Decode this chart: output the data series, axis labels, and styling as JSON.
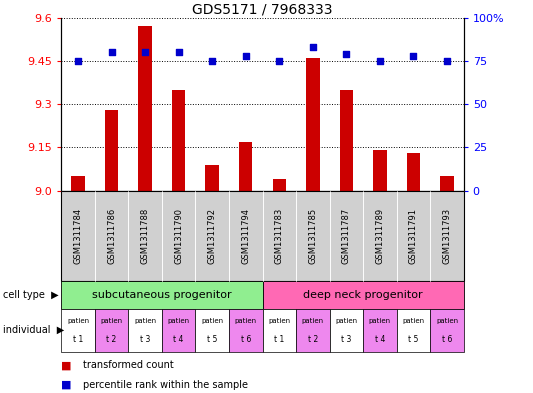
{
  "title": "GDS5171 / 7968333",
  "samples": [
    "GSM1311784",
    "GSM1311786",
    "GSM1311788",
    "GSM1311790",
    "GSM1311792",
    "GSM1311794",
    "GSM1311783",
    "GSM1311785",
    "GSM1311787",
    "GSM1311789",
    "GSM1311791",
    "GSM1311793"
  ],
  "transformed_count": [
    9.05,
    9.28,
    9.57,
    9.35,
    9.09,
    9.17,
    9.04,
    9.46,
    9.35,
    9.14,
    9.13,
    9.05
  ],
  "percentile_rank": [
    75,
    80,
    80,
    80,
    75,
    78,
    75,
    83,
    79,
    75,
    78,
    75
  ],
  "ylim_left": [
    9.0,
    9.6
  ],
  "ylim_right": [
    0,
    100
  ],
  "yticks_left": [
    9.0,
    9.15,
    9.3,
    9.45,
    9.6
  ],
  "yticks_right": [
    0,
    25,
    50,
    75,
    100
  ],
  "cell_type_groups": [
    {
      "label": "subcutaneous progenitor",
      "start": 0,
      "end": 6,
      "color": "#90EE90"
    },
    {
      "label": "deep neck progenitor",
      "start": 6,
      "end": 12,
      "color": "#FF69B4"
    }
  ],
  "individual_labels": [
    "t 1",
    "t 2",
    "t 3",
    "t 4",
    "t 5",
    "t 6",
    "t 1",
    "t 2",
    "t 3",
    "t 4",
    "t 5",
    "t 6"
  ],
  "individual_bg": [
    "#ffffff",
    "#ee88ee",
    "#ffffff",
    "#ee88ee",
    "#ffffff",
    "#ee88ee",
    "#ffffff",
    "#ee88ee",
    "#ffffff",
    "#ee88ee",
    "#ffffff",
    "#ee88ee"
  ],
  "bar_color": "#cc0000",
  "dot_color": "#0000cc",
  "bar_bottom": 9.0,
  "bar_width": 0.4,
  "xlim": [
    -0.5,
    11.5
  ],
  "legend_entries": [
    "transformed count",
    "percentile rank within the sample"
  ],
  "legend_colors": [
    "#cc0000",
    "#0000cc"
  ],
  "gsm_label_bg": "#d0d0d0",
  "title_fontsize": 10,
  "tick_fontsize": 8,
  "gsm_fontsize": 6,
  "cell_type_fontsize": 8,
  "ind_fontsize": 5,
  "legend_fontsize": 7
}
